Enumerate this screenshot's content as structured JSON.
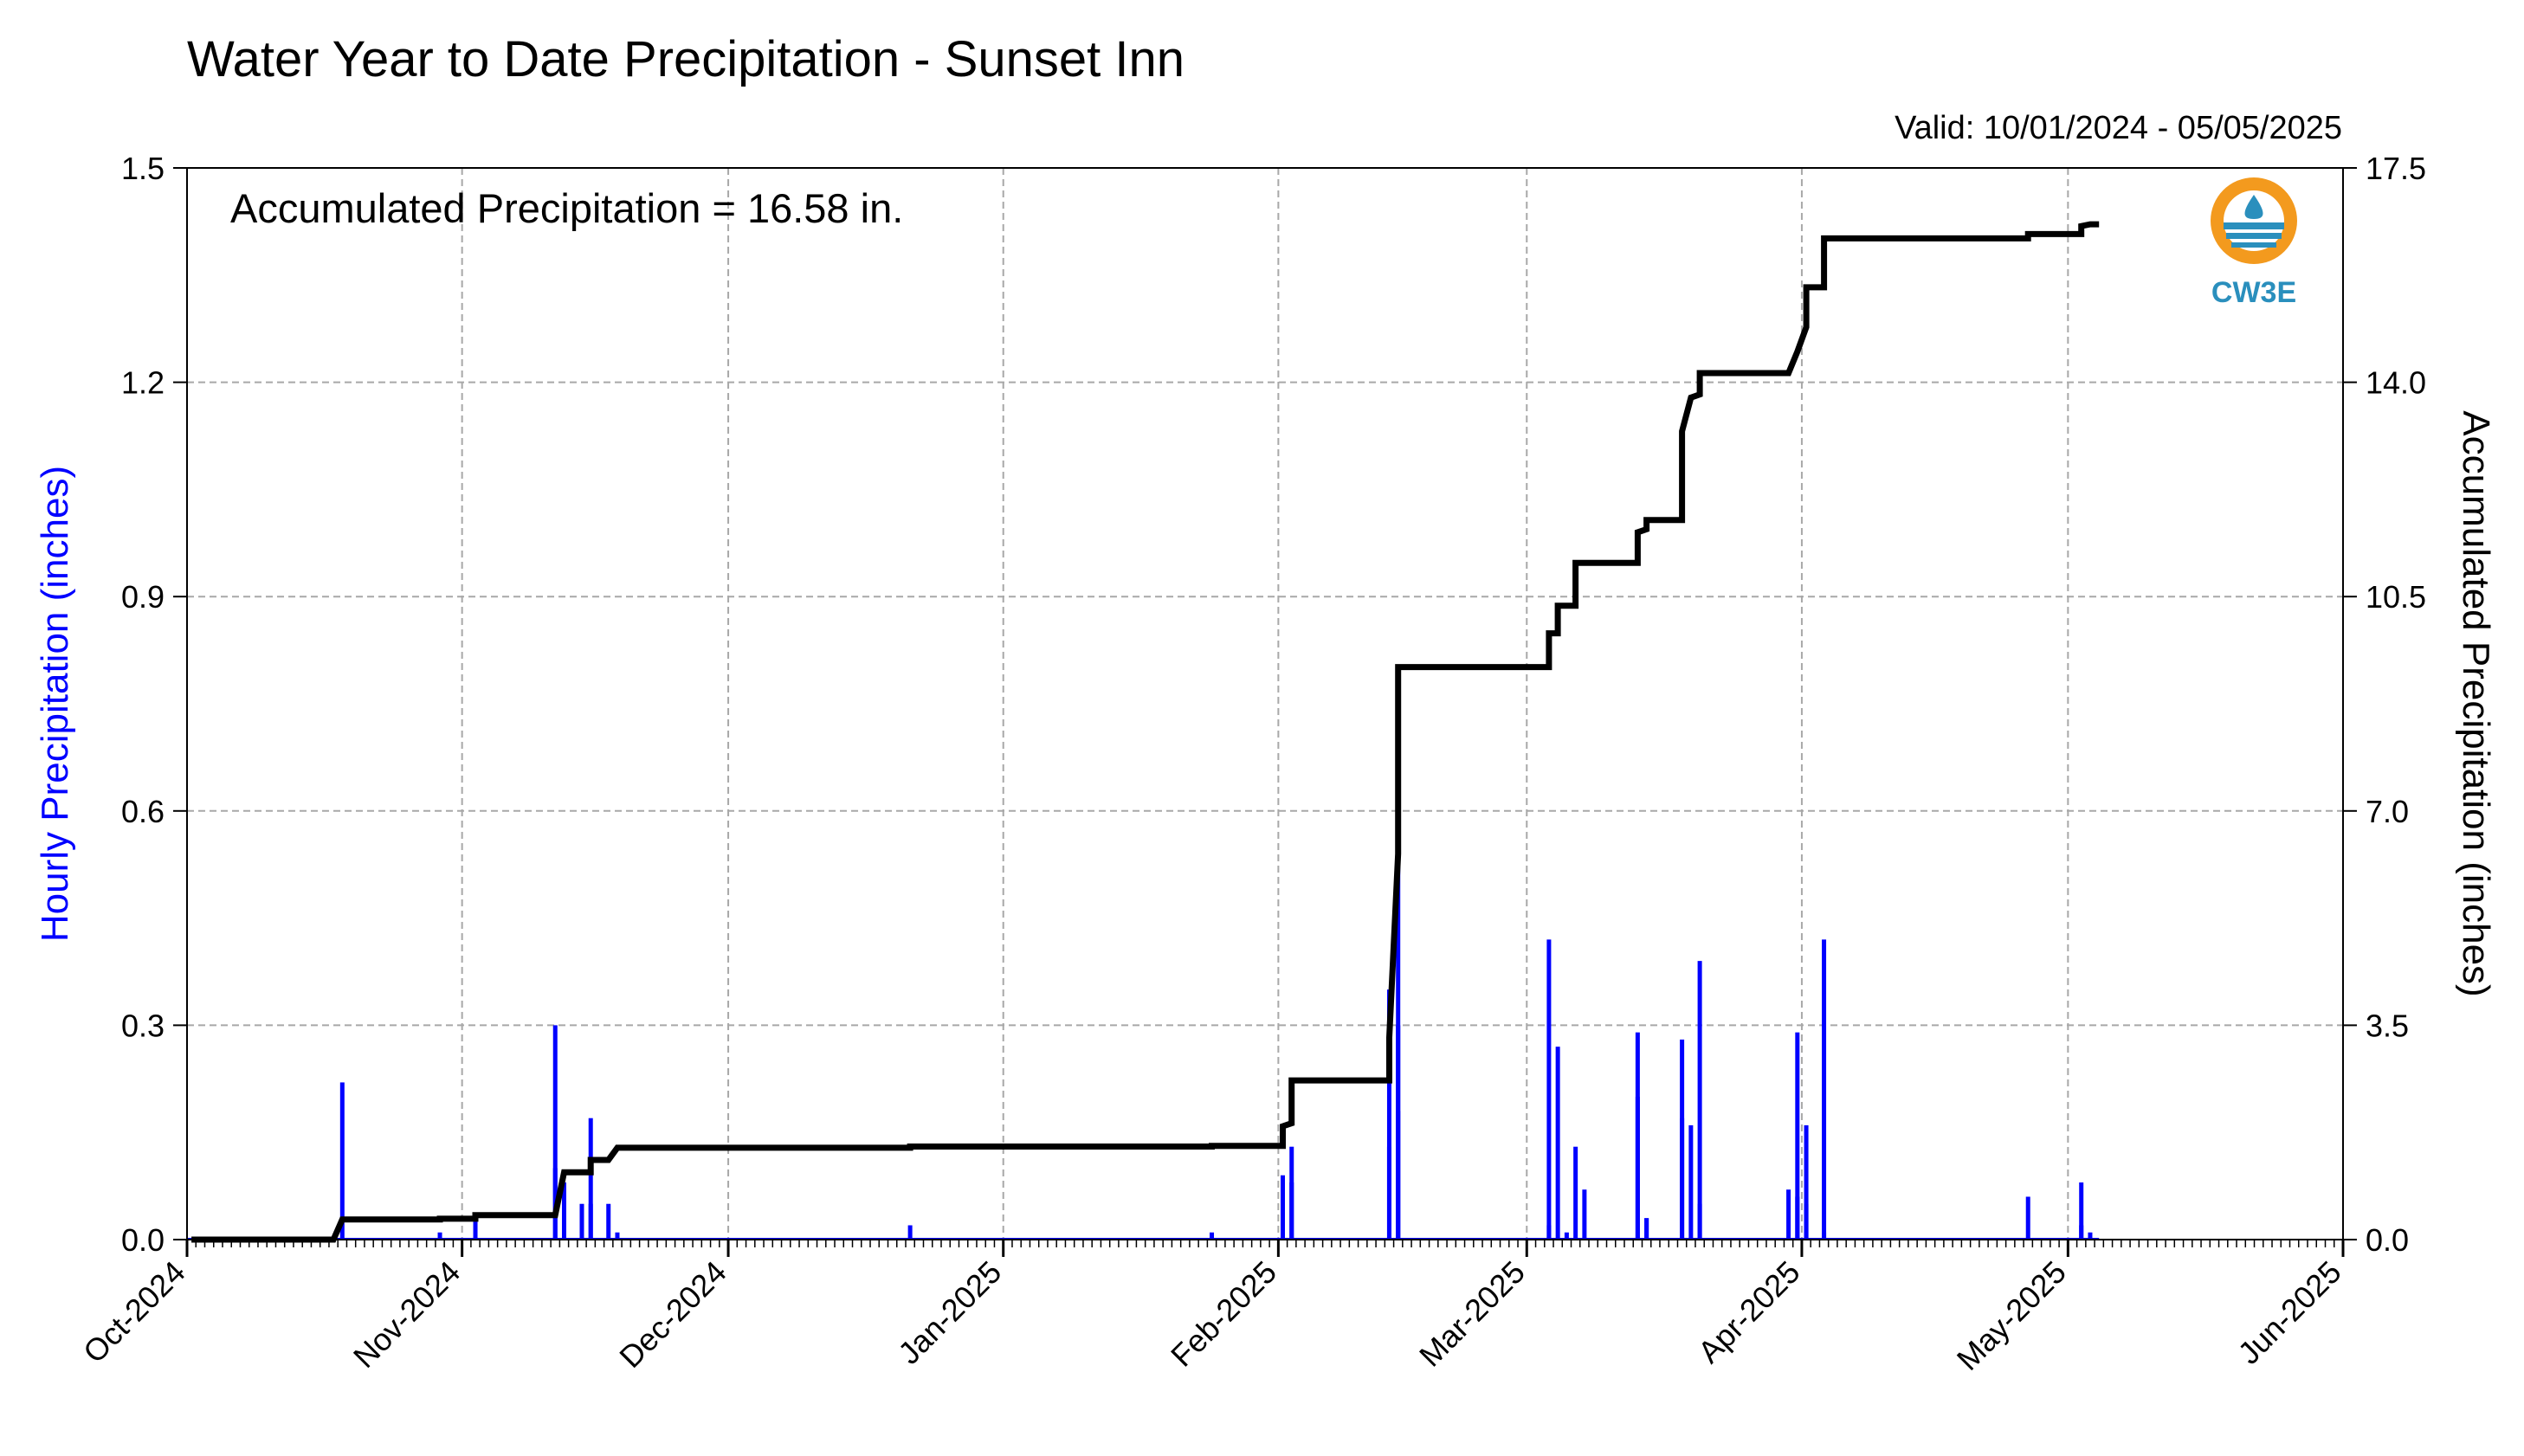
{
  "chart_data": {
    "type": "bar+line",
    "title": "Water Year to Date Precipitation - Sunset Inn",
    "valid_text": "Valid: 10/01/2024 - 05/05/2025",
    "annotation": "Accumulated Precipitation = 16.58 in.",
    "logo_text": "CW3E",
    "y_left": {
      "label": "Hourly Precipitation (inches)",
      "range": [
        0,
        1.5
      ],
      "ticks": [
        "0.0",
        "0.3",
        "0.6",
        "0.9",
        "1.2",
        "1.5"
      ],
      "color": "#0000ff"
    },
    "y_right": {
      "label": "Accumulated Precipitation (inches)",
      "range": [
        0,
        17.5
      ],
      "ticks": [
        "0.0",
        "3.5",
        "7.0",
        "10.5",
        "14.0",
        "17.5"
      ]
    },
    "x_axis": {
      "range": [
        "2024-10-01",
        "2025-06-01"
      ],
      "tick_labels": [
        "Oct-2024",
        "Nov-2024",
        "Dec-2024",
        "Jan-2025",
        "Feb-2025",
        "Mar-2025",
        "Apr-2025",
        "May-2025",
        "Jun-2025"
      ]
    },
    "grid": true,
    "series": [
      {
        "name": "Hourly Precipitation",
        "type": "bar",
        "color": "#0000ff",
        "points": [
          [
            "2024-10-18",
            0.22
          ],
          [
            "2024-10-29",
            0.01
          ],
          [
            "2024-11-02",
            0.03
          ],
          [
            "2024-11-11",
            0.3
          ],
          [
            "2024-11-11",
            0.1
          ],
          [
            "2024-11-12",
            0.08
          ],
          [
            "2024-11-14",
            0.05
          ],
          [
            "2024-11-15",
            0.17
          ],
          [
            "2024-11-15",
            0.05
          ],
          [
            "2024-11-17",
            0.05
          ],
          [
            "2024-11-18",
            0.01
          ],
          [
            "2024-12-21",
            0.02
          ],
          [
            "2025-01-24",
            0.01
          ],
          [
            "2025-02-01",
            0.09
          ],
          [
            "2025-02-02",
            0.08
          ],
          [
            "2025-02-02",
            0.13
          ],
          [
            "2025-02-13",
            0.13
          ],
          [
            "2025-02-13",
            0.35
          ],
          [
            "2025-02-14",
            0.55
          ],
          [
            "2025-02-14",
            0.3
          ],
          [
            "2025-02-14",
            0.18
          ],
          [
            "2025-03-03",
            0.42
          ],
          [
            "2025-03-03",
            0.02
          ],
          [
            "2025-03-04",
            0.27
          ],
          [
            "2025-03-05",
            0.01
          ],
          [
            "2025-03-06",
            0.13
          ],
          [
            "2025-03-07",
            0.07
          ],
          [
            "2025-03-13",
            0.29
          ],
          [
            "2025-03-13",
            0.2
          ],
          [
            "2025-03-14",
            0.03
          ],
          [
            "2025-03-14",
            0.03
          ],
          [
            "2025-03-18",
            0.28
          ],
          [
            "2025-03-18",
            0.17
          ],
          [
            "2025-03-19",
            0.16
          ],
          [
            "2025-03-20",
            0.39
          ],
          [
            "2025-03-20",
            0.05
          ],
          [
            "2025-03-30",
            0.07
          ],
          [
            "2025-03-31",
            0.06
          ],
          [
            "2025-03-31",
            0.29
          ],
          [
            "2025-04-01",
            0.16
          ],
          [
            "2025-04-01",
            0.05
          ],
          [
            "2025-04-03",
            0.42
          ],
          [
            "2025-04-03",
            0.01
          ],
          [
            "2025-04-26",
            0.06
          ],
          [
            "2025-05-02",
            0.08
          ],
          [
            "2025-05-02",
            0.02
          ],
          [
            "2025-05-03",
            0.01
          ]
        ]
      },
      {
        "name": "Accumulated Precipitation",
        "type": "line",
        "color": "#000000",
        "points": [
          [
            "2024-10-01",
            0.0
          ],
          [
            "2024-10-17",
            0.0
          ],
          [
            "2024-10-18",
            0.33
          ],
          [
            "2024-10-29",
            0.33
          ],
          [
            "2024-10-29",
            0.34
          ],
          [
            "2024-11-02",
            0.34
          ],
          [
            "2024-11-02",
            0.4
          ],
          [
            "2024-11-11",
            0.4
          ],
          [
            "2024-11-12",
            1.1
          ],
          [
            "2024-11-15",
            1.1
          ],
          [
            "2024-11-15",
            1.3
          ],
          [
            "2024-11-17",
            1.3
          ],
          [
            "2024-11-18",
            1.5
          ],
          [
            "2024-12-21",
            1.5
          ],
          [
            "2024-12-21",
            1.52
          ],
          [
            "2025-01-24",
            1.52
          ],
          [
            "2025-01-24",
            1.53
          ],
          [
            "2025-02-01",
            1.53
          ],
          [
            "2025-02-01",
            1.85
          ],
          [
            "2025-02-02",
            1.9
          ],
          [
            "2025-02-02",
            2.6
          ],
          [
            "2025-02-13",
            2.6
          ],
          [
            "2025-02-13",
            3.3
          ],
          [
            "2025-02-14",
            6.3
          ],
          [
            "2025-02-14",
            8.2
          ],
          [
            "2025-02-14",
            9.35
          ],
          [
            "2025-03-03",
            9.35
          ],
          [
            "2025-03-03",
            9.9
          ],
          [
            "2025-03-04",
            9.9
          ],
          [
            "2025-03-04",
            10.35
          ],
          [
            "2025-03-06",
            10.35
          ],
          [
            "2025-03-06",
            11.05
          ],
          [
            "2025-03-13",
            11.05
          ],
          [
            "2025-03-13",
            11.55
          ],
          [
            "2025-03-14",
            11.6
          ],
          [
            "2025-03-14",
            11.75
          ],
          [
            "2025-03-18",
            11.75
          ],
          [
            "2025-03-18",
            13.2
          ],
          [
            "2025-03-19",
            13.75
          ],
          [
            "2025-03-20",
            13.8
          ],
          [
            "2025-03-20",
            14.15
          ],
          [
            "2025-03-30",
            14.15
          ],
          [
            "2025-03-31",
            14.5
          ],
          [
            "2025-04-01",
            14.9
          ],
          [
            "2025-04-01",
            15.55
          ],
          [
            "2025-04-03",
            15.55
          ],
          [
            "2025-04-03",
            16.35
          ],
          [
            "2025-04-26",
            16.35
          ],
          [
            "2025-04-26",
            16.42
          ],
          [
            "2025-05-02",
            16.42
          ],
          [
            "2025-05-02",
            16.55
          ],
          [
            "2025-05-03",
            16.58
          ],
          [
            "2025-05-04",
            16.58
          ]
        ]
      }
    ]
  }
}
